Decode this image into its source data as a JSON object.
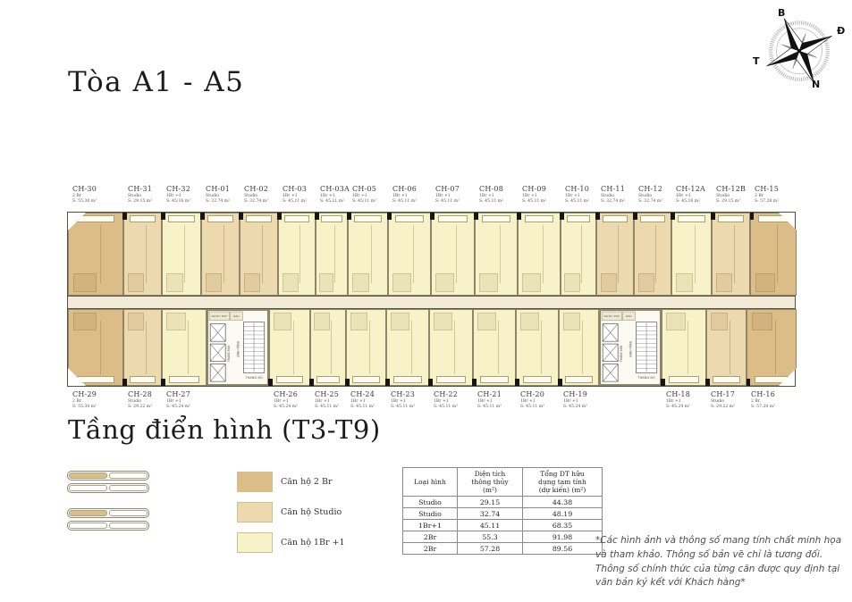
{
  "title": "Tòa A1 - A5",
  "subtitle": "Tầng điển hình (T3-T9)",
  "compass": {
    "north": "B",
    "east": "Đ",
    "south": "N",
    "west": "T"
  },
  "colors": {
    "2br": "#dcbd87",
    "studio": "#ecd9ad",
    "1br1": "#f8f2c8",
    "corridor": "#f0ead6"
  },
  "core_labels": {
    "elevator": "THANG MÁY",
    "stairs": "THANG BỘ",
    "lobby": "SẢNH TẦNG",
    "water": "NƯỚC P.KT",
    "trash": "RÁC"
  },
  "plan": {
    "top_units": [
      {
        "id": "CH-30",
        "type": "2 Br",
        "area": "S: 55.30 m²",
        "kind": "2br",
        "w": 62,
        "chamfer": "tl"
      },
      {
        "id": "CH-31",
        "type": "Studio",
        "area": "S: 29.15 m²",
        "kind": "studio",
        "w": 43
      },
      {
        "id": "CH-32",
        "type": "1Br +1",
        "area": "S: 45.16 m²",
        "kind": "1br1",
        "w": 44
      },
      {
        "id": "CH-01",
        "type": "Studio",
        "area": "S: 32.74 m²",
        "kind": "studio",
        "w": 43
      },
      {
        "id": "CH-02",
        "type": "Studio",
        "area": "S: 32.74 m²",
        "kind": "studio",
        "w": 43
      },
      {
        "id": "CH-03",
        "type": "1Br +1",
        "area": "S: 45.11 m²",
        "kind": "1br1",
        "w": 42
      },
      {
        "id": "CH-03A",
        "type": "1Br +1",
        "area": "S: 45.11 m²",
        "kind": "1br1",
        "w": 36
      },
      {
        "id": "CH-05",
        "type": "1Br +1",
        "area": "S: 45.11 m²",
        "kind": "1br1",
        "w": 45
      },
      {
        "id": "CH-06",
        "type": "1Br +1",
        "area": "S: 45.11 m²",
        "kind": "1br1",
        "w": 48
      },
      {
        "id": "CH-07",
        "type": "1Br +1",
        "area": "S: 45.11 m²",
        "kind": "1br1",
        "w": 49
      },
      {
        "id": "CH-08",
        "type": "1Br +1",
        "area": "S: 45.11 m²",
        "kind": "1br1",
        "w": 48
      },
      {
        "id": "CH-09",
        "type": "1Br +1",
        "area": "S: 45.11 m²",
        "kind": "1br1",
        "w": 48
      },
      {
        "id": "CH-10",
        "type": "1Br +1",
        "area": "S: 45.11 m²",
        "kind": "1br1",
        "w": 40
      },
      {
        "id": "CH-11",
        "type": "Studio",
        "area": "S: 32.74 m²",
        "kind": "studio",
        "w": 42
      },
      {
        "id": "CH-12",
        "type": "Studio",
        "area": "S: 32.74 m²",
        "kind": "studio",
        "w": 42
      },
      {
        "id": "CH-12A",
        "type": "1Br +1",
        "area": "S: 45.16 m²",
        "kind": "1br1",
        "w": 45
      },
      {
        "id": "CH-12B",
        "type": "Studio",
        "area": "S: 29.15 m²",
        "kind": "studio",
        "w": 43
      },
      {
        "id": "CH-15",
        "type": "2 Br",
        "area": "S: 57.28 m²",
        "kind": "2br",
        "w": 52,
        "chamfer": "tr"
      }
    ],
    "bottom_units": [
      {
        "id": "CH-29",
        "type": "2 Br",
        "area": "S: 55.30 m²",
        "kind": "2br",
        "w": 62,
        "chamfer": "bl"
      },
      {
        "id": "CH-28",
        "type": "Studio",
        "area": "S: 29.22 m²",
        "kind": "studio",
        "w": 43
      },
      {
        "id": "CH-27",
        "type": "1Br +1",
        "area": "S: 45.24 m²",
        "kind": "1br1",
        "w": 50
      },
      {
        "core": true,
        "w": 70
      },
      {
        "id": "CH-26",
        "type": "1Br +1",
        "area": "S: 45.24 m²",
        "kind": "1br1",
        "w": 46
      },
      {
        "id": "CH-25",
        "type": "1Br +1",
        "area": "S: 45.11 m²",
        "kind": "1br1",
        "w": 40
      },
      {
        "id": "CH-24",
        "type": "1Br +1",
        "area": "S: 45.11 m²",
        "kind": "1br1",
        "w": 45
      },
      {
        "id": "CH-23",
        "type": "1Br +1",
        "area": "S: 45.11 m²",
        "kind": "1br1",
        "w": 48
      },
      {
        "id": "CH-22",
        "type": "1Br +1",
        "area": "S: 45.11 m²",
        "kind": "1br1",
        "w": 49
      },
      {
        "id": "CH-21",
        "type": "1Br +1",
        "area": "S: 45.11 m²",
        "kind": "1br1",
        "w": 48
      },
      {
        "id": "CH-20",
        "type": "1Br +1",
        "area": "S: 45.11 m²",
        "kind": "1br1",
        "w": 48
      },
      {
        "id": "CH-19",
        "type": "1Br +1",
        "area": "S: 45.24 m²",
        "kind": "1br1",
        "w": 45
      },
      {
        "core": true,
        "w": 70
      },
      {
        "id": "CH-18",
        "type": "1Br +1",
        "area": "S: 45.24 m²",
        "kind": "1br1",
        "w": 50
      },
      {
        "id": "CH-17",
        "type": "Studio",
        "area": "S: 29.22 m²",
        "kind": "studio",
        "w": 45
      },
      {
        "id": "CH-16",
        "type": "2 Br",
        "area": "S: 57.28 m²",
        "kind": "2br",
        "w": 56,
        "chamfer": "br"
      }
    ]
  },
  "keyplans": [
    [
      [
        true,
        false
      ],
      [
        false,
        false
      ]
    ],
    [
      [
        true,
        false
      ],
      [
        false,
        false
      ]
    ]
  ],
  "legend": [
    {
      "label": "Căn hộ 2 Br",
      "key": "2br"
    },
    {
      "label": "Căn hộ Studio",
      "key": "studio"
    },
    {
      "label": "Căn hộ 1Br +1",
      "key": "1br1"
    }
  ],
  "table": {
    "headers": [
      "Loại hình",
      "Diện tích\nthông thủy\n(m²)",
      "Tổng DT hữu\ndụng tạm tính\n(dự kiến) (m²)"
    ],
    "rows": [
      [
        "Studio",
        "29.15",
        "44.38"
      ],
      [
        "Studio",
        "32.74",
        "48.19"
      ],
      [
        "1Br+1",
        "45.11",
        "68.35"
      ],
      [
        "2Br",
        "55.3",
        "91.98"
      ],
      [
        "2Br",
        "57.28",
        "89.56"
      ]
    ]
  },
  "disclaimer": "*Các hình ảnh và thông số mang tính chất minh họa và tham khảo. Thông số bản vẽ chỉ là tương đối. Thông số chính thức của từng căn được quy định tại văn bản ký kết với Khách hàng*"
}
